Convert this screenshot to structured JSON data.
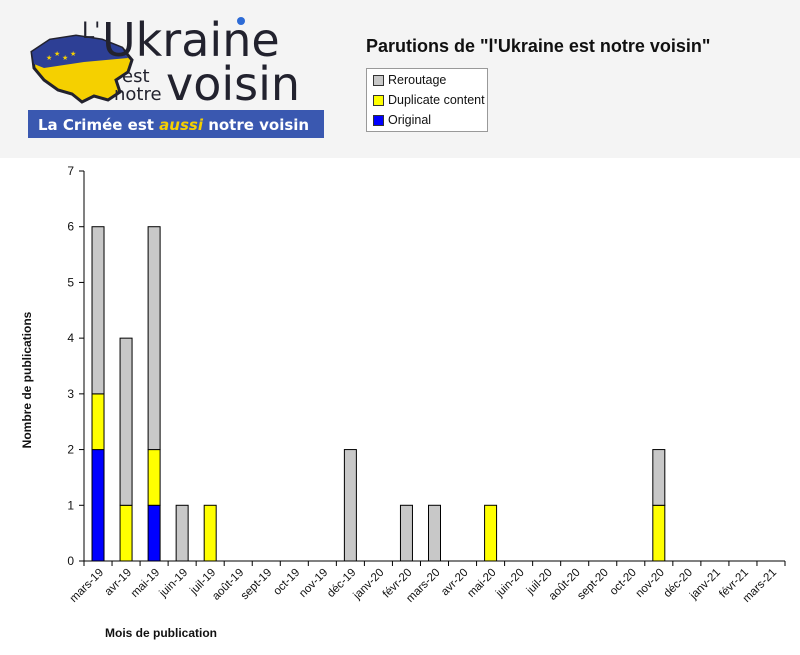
{
  "logo": {
    "prefix": "L'",
    "word_big": "Ukraine",
    "word_small_1": "est",
    "word_small_2": "notre",
    "word_big_2": "voisin",
    "banner_text_1": "La Crimée est ",
    "banner_text_emph": "aussi",
    "banner_text_2": " notre voisin",
    "colors": {
      "blue": "#2d3f95",
      "yellow": "#f5d000",
      "banner": "#3a58b0",
      "dark": "#22222e"
    }
  },
  "legend": {
    "items": [
      {
        "label": "Reroutage",
        "color": "#c8c8c8"
      },
      {
        "label": "Duplicate content",
        "color": "#ffff00"
      },
      {
        "label": "Original",
        "color": "#0000ff"
      }
    ]
  },
  "chart_data": {
    "type": "bar",
    "stacked": true,
    "title": "Parutions de \"l'Ukraine est notre voisin\"",
    "xlabel": "Mois de publication",
    "ylabel": "Nombre de publications",
    "ylim": [
      0,
      7
    ],
    "yticks": [
      0,
      1,
      2,
      3,
      4,
      5,
      6,
      7
    ],
    "grid": false,
    "legend_position": "top",
    "categories": [
      "mars-19",
      "avr-19",
      "mai-19",
      "juin-19",
      "juil-19",
      "août-19",
      "sept-19",
      "oct-19",
      "nov-19",
      "déc-19",
      "janv-20",
      "févr-20",
      "mars-20",
      "avr-20",
      "mai-20",
      "juin-20",
      "juil-20",
      "août-20",
      "sept-20",
      "oct-20",
      "nov-20",
      "déc-20",
      "janv-21",
      "févr-21",
      "mars-21"
    ],
    "series": [
      {
        "name": "Original",
        "color": "#0000ff",
        "values": [
          2,
          0,
          1,
          0,
          0,
          0,
          0,
          0,
          0,
          0,
          0,
          0,
          0,
          0,
          0,
          0,
          0,
          0,
          0,
          0,
          0,
          0,
          0,
          0,
          0
        ]
      },
      {
        "name": "Duplicate content",
        "color": "#ffff00",
        "values": [
          1,
          1,
          1,
          0,
          1,
          0,
          0,
          0,
          0,
          0,
          0,
          0,
          0,
          0,
          1,
          0,
          0,
          0,
          0,
          0,
          1,
          0,
          0,
          0,
          0
        ]
      },
      {
        "name": "Reroutage",
        "color": "#c8c8c8",
        "values": [
          3,
          3,
          4,
          1,
          0,
          0,
          0,
          0,
          0,
          2,
          0,
          1,
          1,
          0,
          0,
          0,
          0,
          0,
          0,
          0,
          1,
          0,
          0,
          0,
          0
        ]
      }
    ]
  }
}
